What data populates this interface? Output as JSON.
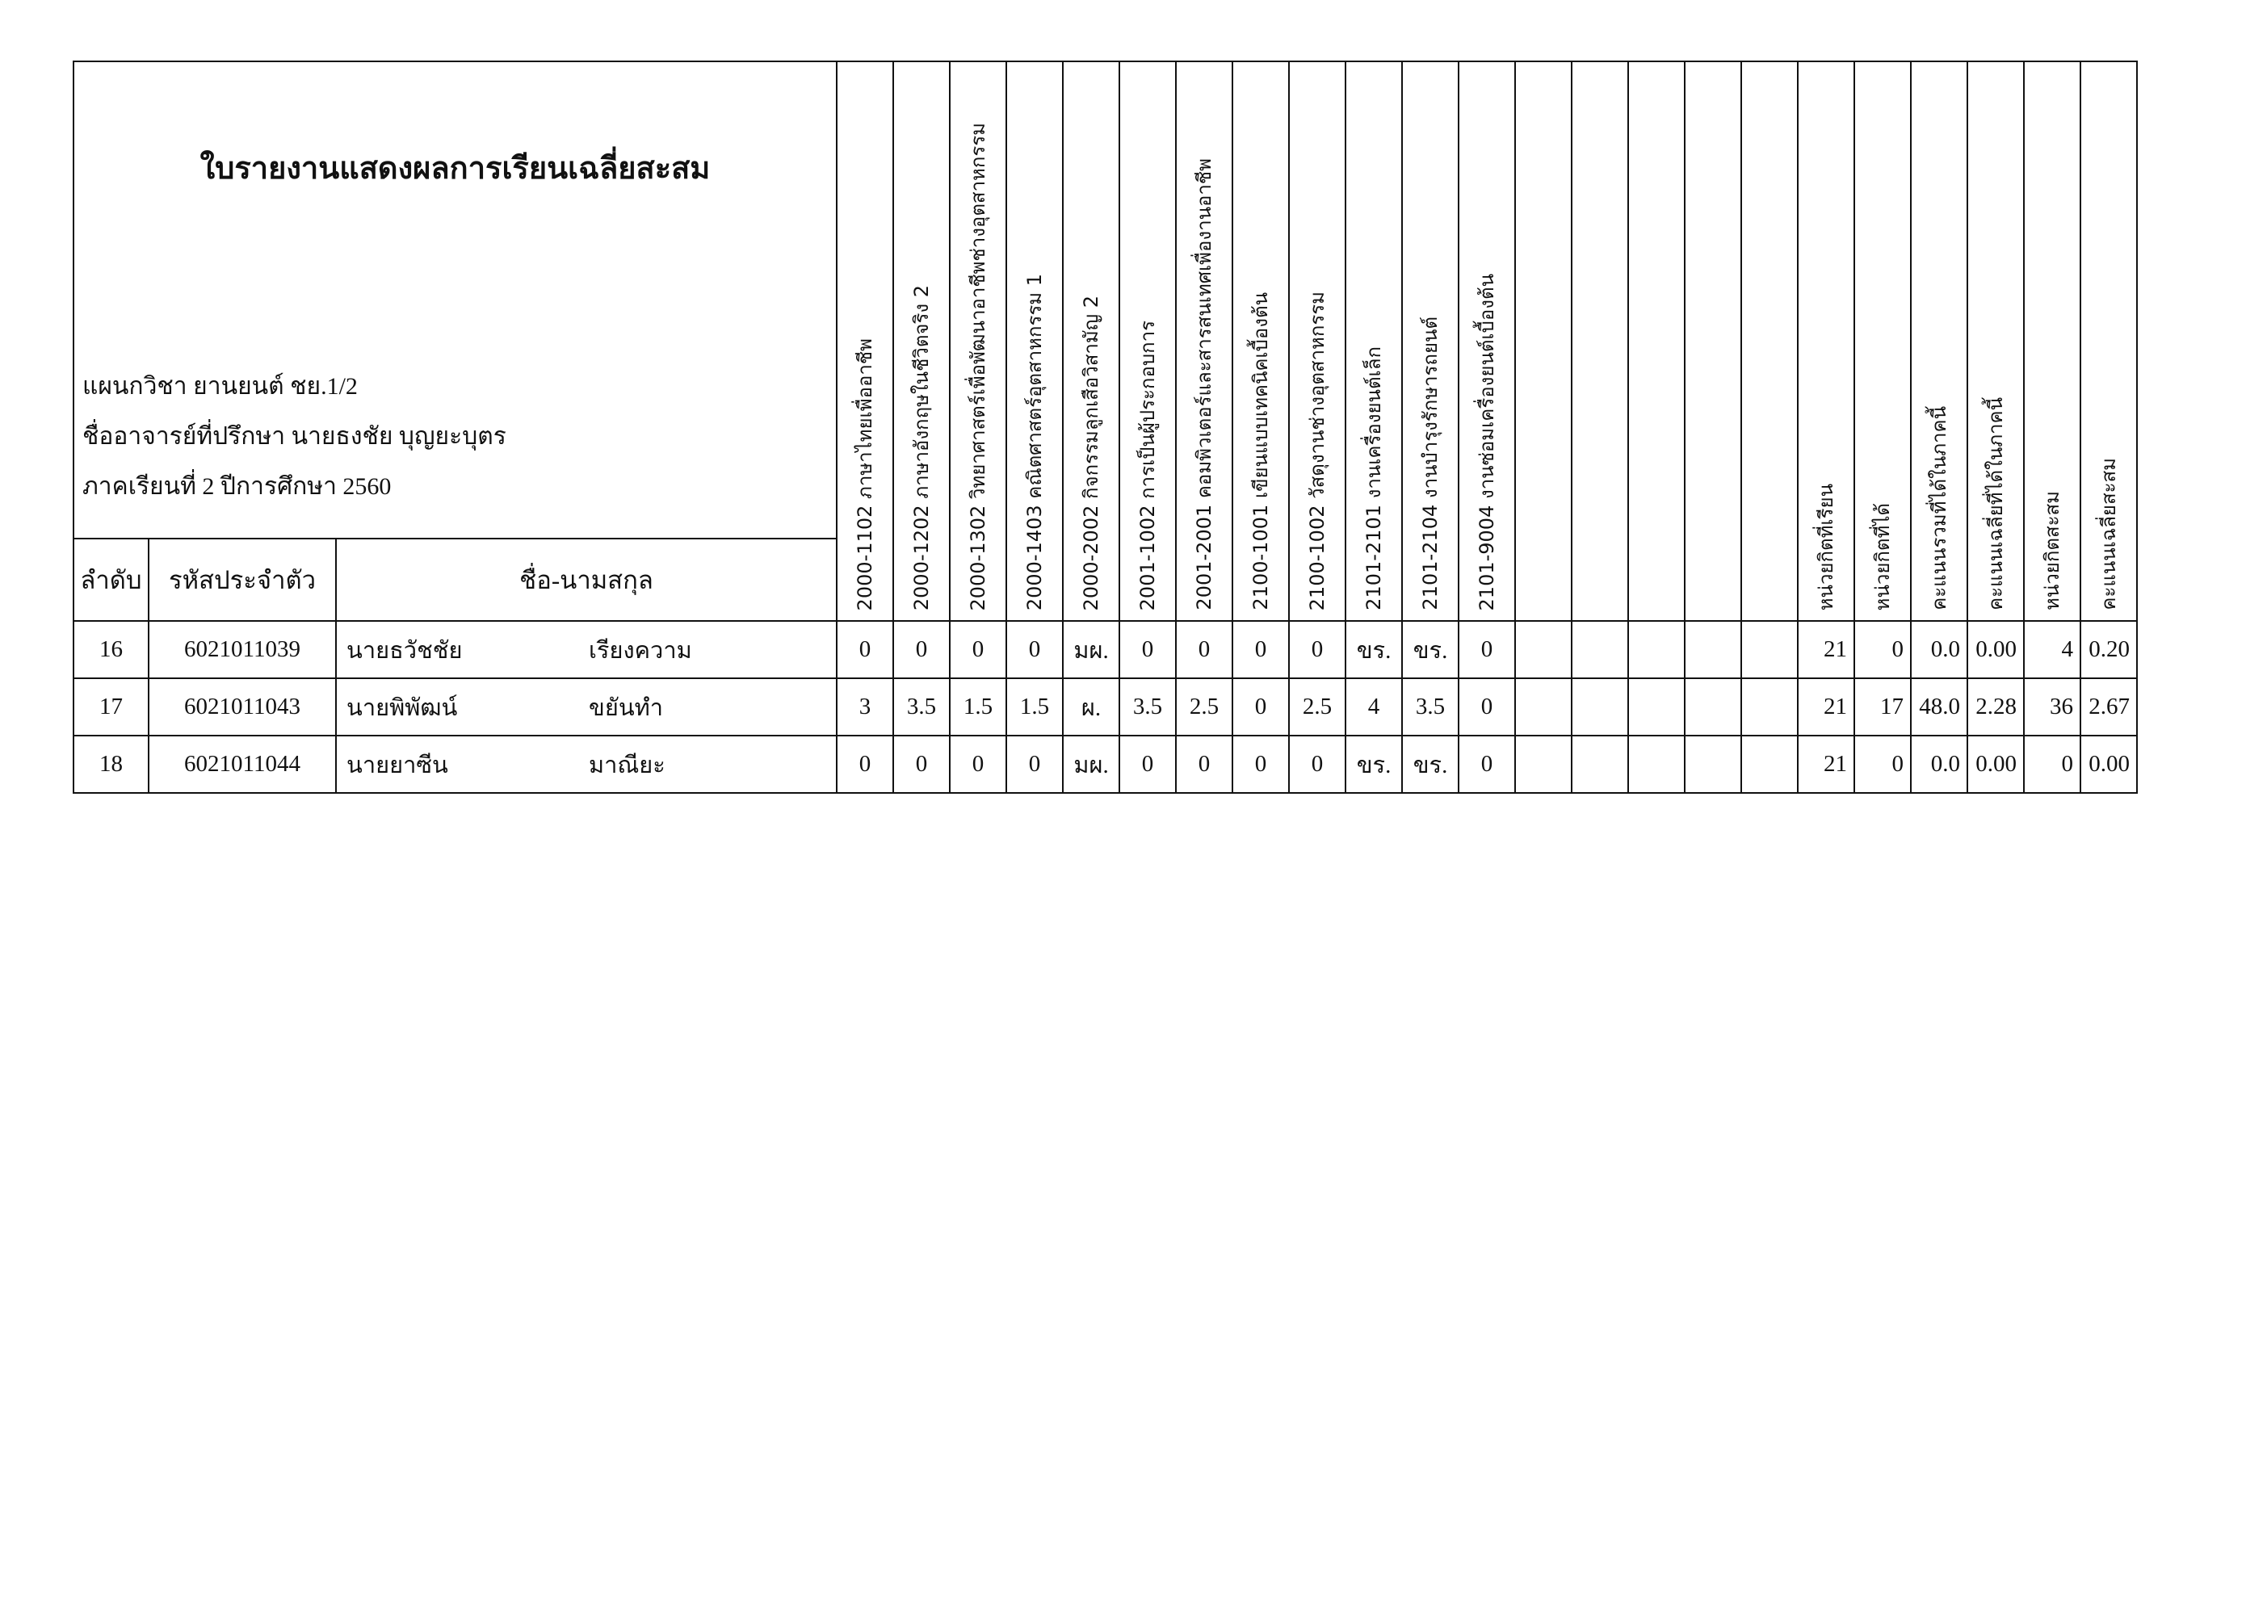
{
  "title": "ใบรายงานแสดงผลการเรียนเฉลี่ยสะสม",
  "department": "แผนกวิชา  ยานยนต์ ชย.1/2",
  "advisor": "ชื่ออาจารย์ที่ปรึกษา  นายธงชัย บุญยะบุตร",
  "semester": "ภาคเรียนที่  2   ปีการศึกษา  2560",
  "columns": {
    "no": "ลำดับ",
    "student_id": "รหัสประจำตัว",
    "name": "ชื่อ-นามสกุล"
  },
  "subjects": [
    "2000-1102 ภาษาไทยเพื่ออาชีพ",
    "2000-1202 ภาษาอังกฤษในชีวิตจริง 2",
    "2000-1302 วิทยาศาสตร์เพื่อพัฒนาอาชีพช่างอุตสาหกรรม",
    "2000-1403 คณิตศาสตร์อุตสาหกรรม 1",
    "2000-2002 กิจกรรมลูกเสือวิสามัญ 2",
    "2001-1002 การเป็นผู้ประกอบการ",
    "2001-2001 คอมพิวเตอร์และสารสนเทศเพื่องานอาชีพ",
    "2100-1001 เขียนแบบเทคนิคเบื้องต้น",
    "2100-1002 วัสดุงานช่างอุตสาหกรรม",
    "2101-2101 งานเครื่องยนต์เล็ก",
    "2101-2104 งานบำรุงรักษารถยนต์",
    "2101-9004 งานซ่อมเครื่องยนต์เบื้องต้น",
    "",
    "",
    "",
    "",
    ""
  ],
  "summary_headers": [
    "หน่วยกิตที่เรียน",
    "หน่วยกิตที่ได้",
    "คะแนนรวมที่ได้ในภาคนี้",
    "คะแนนเฉลี่ยที่ได้ในภาคนี้",
    "หน่วยกิตสะสม",
    "คะแนนเฉลี่ยสะสม"
  ],
  "rows": [
    {
      "no": "16",
      "id": "6021011039",
      "first": "นายธวัชชัย",
      "last": "เรียงความ",
      "grades": [
        "0",
        "0",
        "0",
        "0",
        "มผ.",
        "0",
        "0",
        "0",
        "0",
        "ขร.",
        "ขร.",
        "0",
        "",
        "",
        "",
        "",
        ""
      ],
      "summary": [
        "21",
        "0",
        "0.0",
        "0.00",
        "4",
        "0.20"
      ]
    },
    {
      "no": "17",
      "id": "6021011043",
      "first": "นายพิพัฒน์",
      "last": "ขยันทำ",
      "grades": [
        "3",
        "3.5",
        "1.5",
        "1.5",
        "ผ.",
        "3.5",
        "2.5",
        "0",
        "2.5",
        "4",
        "3.5",
        "0",
        "",
        "",
        "",
        "",
        ""
      ],
      "summary": [
        "21",
        "17",
        "48.0",
        "2.28",
        "36",
        "2.67"
      ]
    },
    {
      "no": "18",
      "id": "6021011044",
      "first": "นายยาซีน",
      "last": "มาณียะ",
      "grades": [
        "0",
        "0",
        "0",
        "0",
        "มผ.",
        "0",
        "0",
        "0",
        "0",
        "ขร.",
        "ขร.",
        "0",
        "",
        "",
        "",
        "",
        ""
      ],
      "summary": [
        "21",
        "0",
        "0.0",
        "0.00",
        "0",
        "0.00"
      ]
    }
  ]
}
